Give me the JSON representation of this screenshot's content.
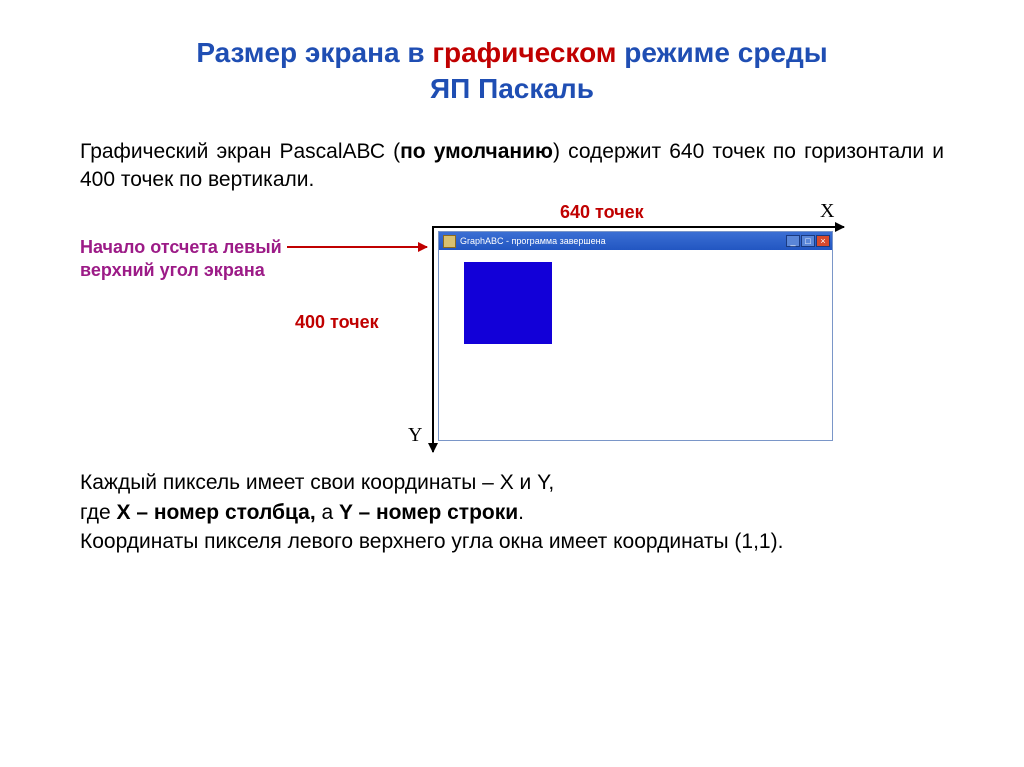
{
  "title": {
    "part1a": "Размер экрана в ",
    "part2a": "графическом",
    "part1b": " режиме среды ",
    "part1c": "ЯП Паскаль"
  },
  "intro": {
    "pre": "Графический экран PascalАВС (",
    "bold": "по умолчанию",
    "post": ") содержит 640 точек по горизонтали и 400 точек по вертикали."
  },
  "labels": {
    "top": "640 точек",
    "left": "400 точек",
    "origin_l1": "Начало отсчета левый",
    "origin_l2": "верхний угол экрана",
    "x": "X",
    "y": "Y"
  },
  "window": {
    "title": "GraphABC - программа завершена",
    "min": "_",
    "max": "□",
    "close": "×"
  },
  "footer": {
    "l1a": "Каждый пиксель имеет свои координаты – X и Y,",
    "l2a": "где ",
    "l2b": "X – номер столбца,",
    "l2c": " а ",
    "l2d": "Y – номер строки",
    "l2e": ".",
    "l3": "Координаты пикселя левого верхнего угла окна имеет координаты (1,1)."
  },
  "colors": {
    "title_blue": "#1f4eb3",
    "accent_red": "#c00000",
    "accent_purple": "#9c1b87",
    "square_blue": "#1200d8",
    "titlebar_blue": "#2256c2"
  }
}
